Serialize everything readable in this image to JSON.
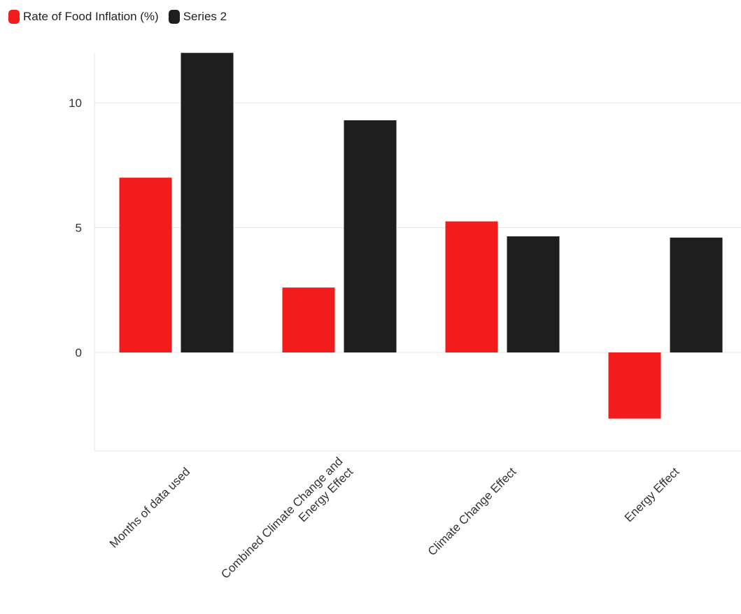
{
  "chart_data": {
    "type": "bar",
    "categories": [
      [
        "Months of data used"
      ],
      [
        "Combined Climate Change and",
        "Energy Effect"
      ],
      [
        "Climate Change Effect"
      ],
      [
        "Energy Effect"
      ]
    ],
    "series": [
      {
        "name": "Rate of Food Inflation (%)",
        "color": "#f21c1c",
        "values": [
          7.0,
          2.6,
          5.25,
          -2.65
        ]
      },
      {
        "name": "Series 2",
        "color": "#1e1e1e",
        "values": [
          12.0,
          9.3,
          4.65,
          4.6
        ]
      }
    ],
    "ylim": [
      -4,
      12
    ],
    "yticks": [
      0,
      5,
      10
    ],
    "grid": true,
    "legend": "top-left",
    "title": "",
    "xlabel": "",
    "ylabel": ""
  }
}
